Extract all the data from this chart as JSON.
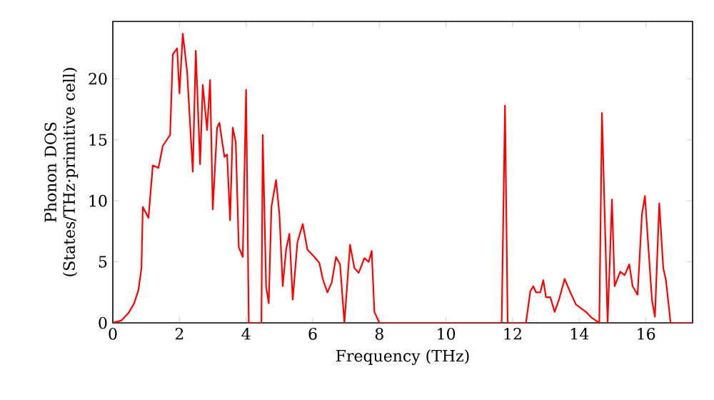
{
  "chart_data": {
    "type": "line",
    "xlabel": "Frequency (THz)",
    "ylabel": "Phonon DOS (States/THz·primitive cell)",
    "xlim": [
      0,
      17.4
    ],
    "ylim": [
      0,
      24.7
    ],
    "xticks": [
      0,
      2,
      4,
      6,
      8,
      10,
      12,
      14,
      16
    ],
    "yticks": [
      0,
      5,
      10,
      15,
      20
    ],
    "marker": "none",
    "line_style": "solid",
    "series": [
      {
        "color": "#ff0000",
        "x": [
          0,
          0.26,
          0.47,
          0.64,
          0.77,
          0.86,
          0.9,
          1.07,
          1.2,
          1.37,
          1.5,
          1.72,
          1.8,
          1.93,
          2.0,
          2.1,
          2.23,
          2.4,
          2.49,
          2.62,
          2.7,
          2.83,
          2.92,
          3.0,
          3.13,
          3.2,
          3.35,
          3.43,
          3.52,
          3.6,
          3.69,
          3.78,
          3.9,
          4.0,
          4.08,
          4.46,
          4.5,
          4.6,
          4.68,
          4.76,
          4.9,
          5.0,
          5.1,
          5.2,
          5.3,
          5.4,
          5.54,
          5.7,
          5.84,
          6.05,
          6.2,
          6.3,
          6.44,
          6.57,
          6.7,
          6.82,
          6.95,
          7.12,
          7.25,
          7.38,
          7.55,
          7.68,
          7.77,
          7.85,
          8.0,
          11.67,
          11.77,
          11.85,
          12.4,
          12.53,
          12.62,
          12.7,
          12.83,
          12.92,
          13.0,
          13.13,
          13.26,
          13.39,
          13.56,
          13.73,
          13.9,
          14.2,
          14.38,
          14.6,
          14.68,
          14.85,
          14.98,
          15.06,
          15.23,
          15.36,
          15.5,
          15.6,
          15.75,
          15.88,
          15.97,
          16.18,
          16.27,
          16.4,
          16.52,
          16.6,
          16.74,
          17.4
        ],
        "values": [
          0,
          0.2,
          0.8,
          1.6,
          2.7,
          4.5,
          9.5,
          8.6,
          12.9,
          12.7,
          14.5,
          15.4,
          22,
          22.5,
          18.8,
          23.7,
          20.6,
          12.4,
          22.3,
          13,
          19.5,
          15.8,
          19.9,
          9.3,
          16,
          16.4,
          13.6,
          13.8,
          8.4,
          16,
          14.8,
          6.2,
          5.4,
          19.1,
          0,
          0,
          15.4,
          3,
          1.6,
          9.5,
          11.7,
          8.9,
          3,
          6,
          7.3,
          1.9,
          6.6,
          8.1,
          6,
          5.4,
          4.9,
          3.6,
          2.5,
          3.3,
          5.4,
          4.8,
          0,
          6.4,
          4.5,
          4.1,
          5.3,
          5.0,
          5.9,
          0.9,
          0,
          0,
          17.8,
          0,
          0,
          2.6,
          3.0,
          2.5,
          2.5,
          3.5,
          2.1,
          2.1,
          0.9,
          1.9,
          3.6,
          2.5,
          1.5,
          0.9,
          0.4,
          0,
          17.2,
          0,
          10.1,
          3,
          4.2,
          3.9,
          4.8,
          3,
          2.3,
          8.9,
          10.4,
          1.9,
          0.5,
          9.8,
          4.5,
          3.5,
          0,
          0
        ]
      }
    ]
  }
}
